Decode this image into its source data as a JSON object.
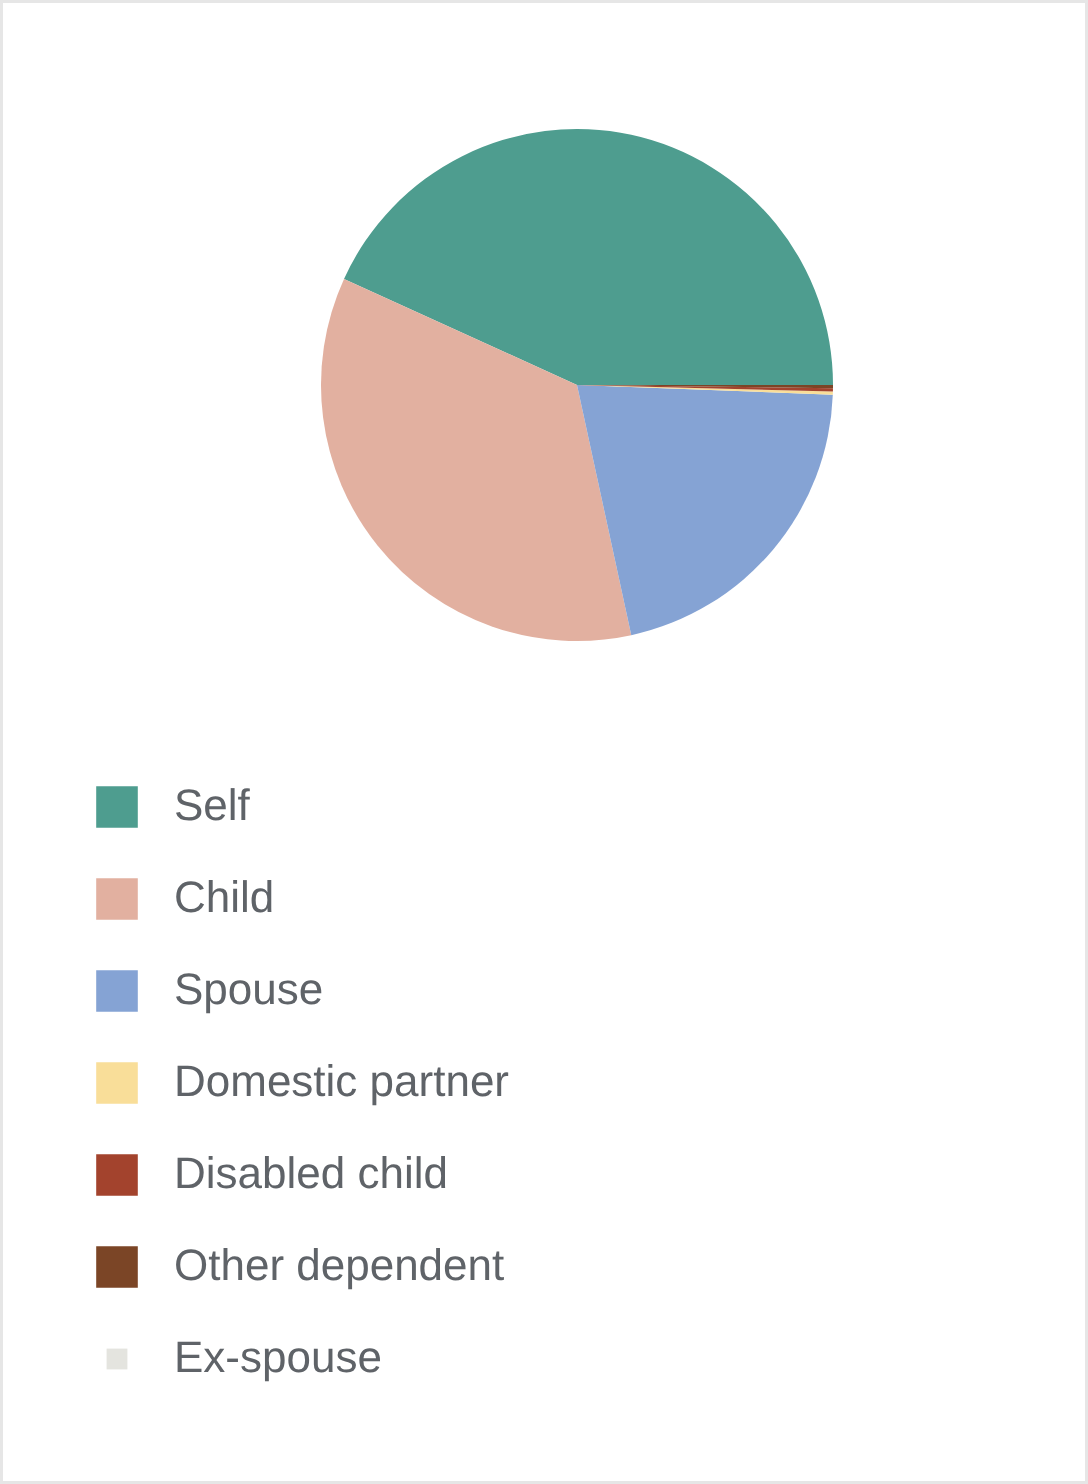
{
  "chart_data": {
    "type": "pie",
    "categories": [
      "Self",
      "Child",
      "Spouse",
      "Domestic partner",
      "Disabled child",
      "Other dependent",
      "Ex-spouse"
    ],
    "values": [
      43.2,
      35.2,
      21.0,
      0.2,
      0.2,
      0.2,
      0
    ],
    "colors": [
      "#4e9d8f",
      "#e2b0a0",
      "#85a3d4",
      "#f9de99",
      "#a3432d",
      "#7b4526",
      "#e4e4df"
    ],
    "legend": "bottom"
  }
}
